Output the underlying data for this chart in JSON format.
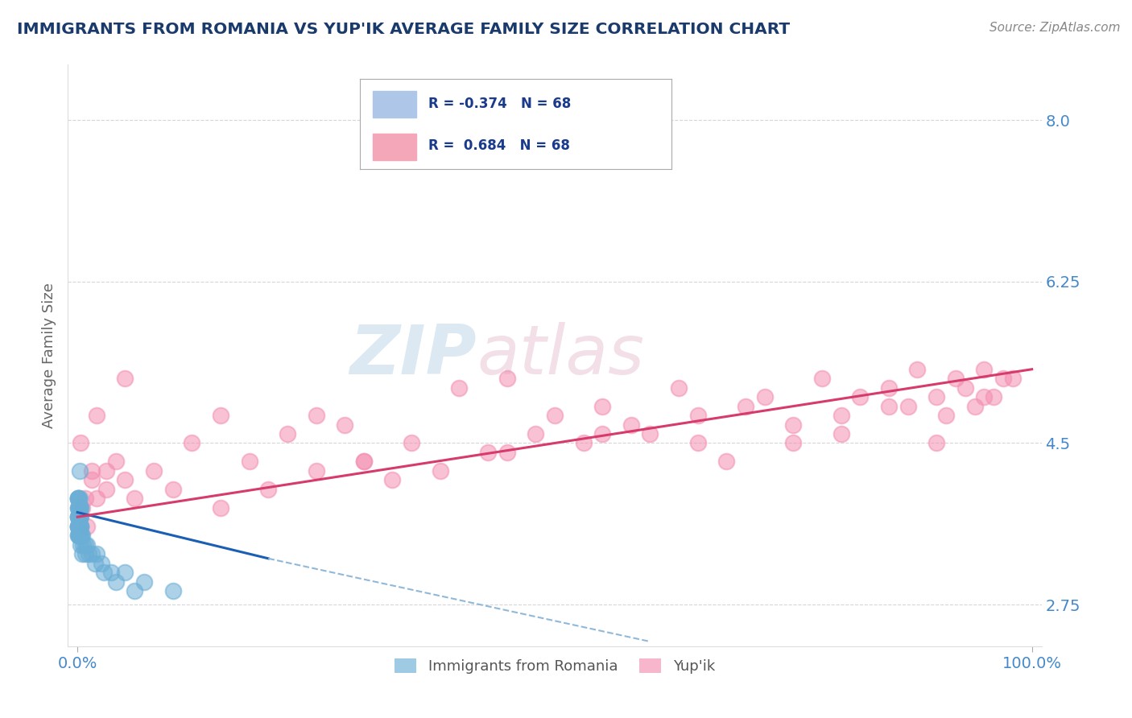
{
  "title": "IMMIGRANTS FROM ROMANIA VS YUP'IK AVERAGE FAMILY SIZE CORRELATION CHART",
  "source_text": "Source: ZipAtlas.com",
  "ylabel": "Average Family Size",
  "y_ticks": [
    2.75,
    4.5,
    6.25,
    8.0
  ],
  "xlim": [
    -1.0,
    101.0
  ],
  "ylim": [
    2.3,
    8.6
  ],
  "legend_label_1": "Immigrants from Romania",
  "legend_label_2": "Yup'ik",
  "romania_color": "#6baed6",
  "yupik_color": "#f48fb1",
  "romania_line_color": "#1a5fb4",
  "yupik_line_color": "#d63b6b",
  "dashed_color": "#90b8d8",
  "background_color": "#ffffff",
  "grid_color": "#cccccc",
  "title_color": "#1a3a6b",
  "tick_label_color": "#4488cc",
  "source_color": "#888888",
  "romania_scatter_x": [
    0.1,
    0.15,
    0.2,
    0.1,
    0.05,
    0.3,
    0.2,
    0.1,
    0.15,
    0.25,
    0.1,
    0.2,
    0.15,
    0.1,
    0.2,
    0.3,
    0.15,
    0.1,
    0.2,
    0.25,
    0.1,
    0.15,
    0.2,
    0.1,
    0.3,
    0.15,
    0.2,
    0.1,
    0.25,
    0.15,
    0.1,
    0.2,
    0.15,
    0.3,
    0.1,
    0.2,
    0.15,
    0.25,
    0.1,
    0.2,
    0.5,
    0.8,
    1.0,
    1.5,
    2.0,
    2.5,
    3.5,
    5.0,
    7.0,
    10.0,
    0.3,
    0.4,
    0.6,
    0.8,
    1.2,
    1.8,
    2.8,
    4.0,
    6.0,
    0.2,
    0.1,
    0.15,
    0.2,
    0.3,
    0.1,
    0.5,
    0.3,
    0.2
  ],
  "romania_scatter_y": [
    3.6,
    3.8,
    3.5,
    3.7,
    3.9,
    3.6,
    3.8,
    3.7,
    3.5,
    3.6,
    3.9,
    3.7,
    3.8,
    3.6,
    3.5,
    3.7,
    3.8,
    3.9,
    3.6,
    3.7,
    3.5,
    3.8,
    3.6,
    3.7,
    3.8,
    3.5,
    3.9,
    3.6,
    3.7,
    3.8,
    3.6,
    3.5,
    3.7,
    3.8,
    3.9,
    3.6,
    3.7,
    3.5,
    3.8,
    3.6,
    3.5,
    3.4,
    3.4,
    3.3,
    3.3,
    3.2,
    3.1,
    3.1,
    3.0,
    2.9,
    3.6,
    3.5,
    3.4,
    3.3,
    3.3,
    3.2,
    3.1,
    3.0,
    2.9,
    4.2,
    3.5,
    3.6,
    3.7,
    3.4,
    3.8,
    3.3,
    3.6,
    3.5
  ],
  "yupik_scatter_x": [
    0.5,
    1.0,
    1.5,
    2.0,
    3.0,
    4.0,
    5.0,
    6.0,
    8.0,
    10.0,
    12.0,
    15.0,
    18.0,
    20.0,
    22.0,
    25.0,
    28.0,
    30.0,
    33.0,
    35.0,
    38.0,
    40.0,
    43.0,
    45.0,
    48.0,
    50.0,
    53.0,
    55.0,
    58.0,
    60.0,
    63.0,
    65.0,
    68.0,
    70.0,
    72.0,
    75.0,
    78.0,
    80.0,
    82.0,
    85.0,
    87.0,
    88.0,
    90.0,
    91.0,
    92.0,
    93.0,
    94.0,
    95.0,
    96.0,
    97.0,
    0.3,
    2.0,
    0.8,
    1.5,
    5.0,
    3.0,
    15.0,
    25.0,
    55.0,
    75.0,
    85.0,
    90.0,
    95.0,
    98.0,
    30.0,
    45.0,
    65.0,
    80.0
  ],
  "yupik_scatter_y": [
    3.8,
    3.6,
    4.2,
    3.9,
    4.0,
    4.3,
    4.1,
    3.9,
    4.2,
    4.0,
    4.5,
    3.8,
    4.3,
    4.0,
    4.6,
    4.2,
    4.7,
    4.3,
    4.1,
    4.5,
    4.2,
    5.1,
    4.4,
    5.2,
    4.6,
    4.8,
    4.5,
    4.9,
    4.7,
    4.6,
    5.1,
    4.8,
    4.3,
    4.9,
    5.0,
    4.7,
    5.2,
    4.8,
    5.0,
    5.1,
    4.9,
    5.3,
    5.0,
    4.8,
    5.2,
    5.1,
    4.9,
    5.3,
    5.0,
    5.2,
    4.5,
    4.8,
    3.9,
    4.1,
    5.2,
    4.2,
    4.8,
    4.8,
    4.6,
    4.5,
    4.9,
    4.5,
    5.0,
    5.2,
    4.3,
    4.4,
    4.5,
    4.6
  ],
  "romania_line_x0": 0.0,
  "romania_line_x1": 20.0,
  "romania_line_y0": 3.75,
  "romania_line_y1": 3.25,
  "romania_dash_x0": 20.0,
  "romania_dash_x1": 60.0,
  "romania_dash_y0": 3.25,
  "romania_dash_y1": 2.35,
  "yupik_line_x0": 0.0,
  "yupik_line_x1": 100.0,
  "yupik_line_y0": 3.7,
  "yupik_line_y1": 5.3
}
